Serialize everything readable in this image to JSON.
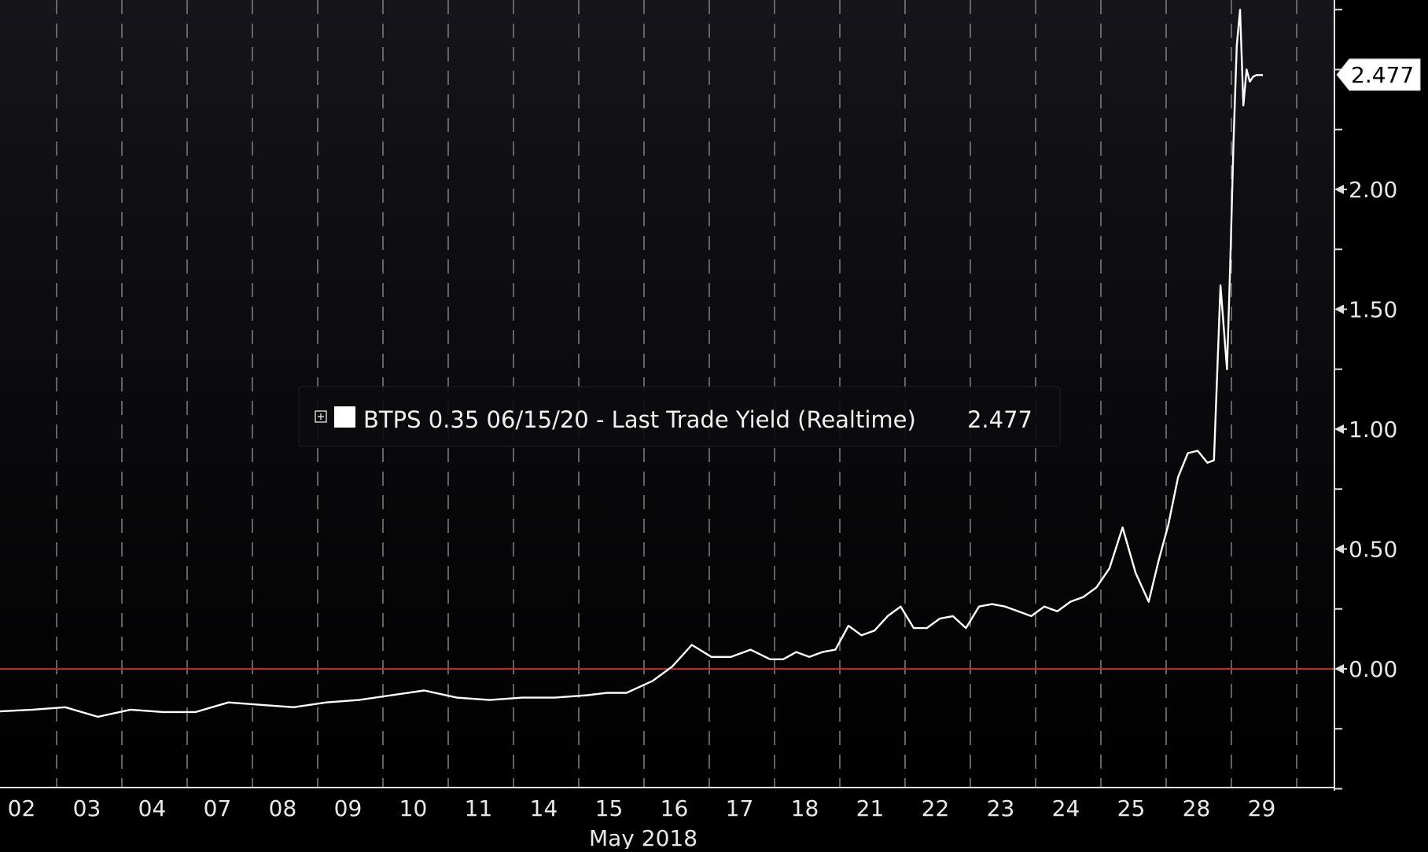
{
  "chart_data": {
    "type": "line",
    "title": "",
    "xlabel": "May 2018",
    "ylabel": "",
    "x_tick_labels": [
      "02",
      "03",
      "04",
      "07",
      "08",
      "09",
      "10",
      "11",
      "14",
      "15",
      "16",
      "17",
      "18",
      "21",
      "22",
      "23",
      "24",
      "25",
      "28",
      "29"
    ],
    "y_ticks": [
      0.0,
      0.5,
      1.0,
      1.5,
      2.0
    ],
    "y_tick_labels": [
      "0.00",
      "0.50",
      "1.00",
      "1.50",
      "2.00"
    ],
    "ylim": [
      -0.5,
      2.75
    ],
    "xlim": [
      0,
      20.5
    ],
    "reference_line": {
      "value": 0.0,
      "color": "#c0282d"
    },
    "grid": {
      "vertical_dashed": true,
      "horizontal": false
    },
    "legend": {
      "placement": "center",
      "icon": "expand-box-icon",
      "swatch_color": "#ffffff",
      "label": "BTPS 0.35 06/15/20 - Last Trade Yield (Realtime)",
      "value": "2.477"
    },
    "last_value_label": "2.477",
    "colors": {
      "background_top": "#15151a",
      "background_bottom": "#000000",
      "line": "#ffffff",
      "grid": "#7a7a7a",
      "axis": "#e0e0e0"
    },
    "series": [
      {
        "name": "BTPS 0.35 06/15/20 - Last Trade Yield (Realtime)",
        "x": [
          -0.2,
          0.5,
          1.0,
          1.5,
          2.0,
          2.5,
          3.0,
          3.5,
          4.0,
          4.5,
          5.0,
          5.5,
          6.0,
          6.5,
          7.0,
          7.5,
          8.0,
          8.5,
          9.0,
          9.3,
          9.6,
          10.0,
          10.3,
          10.6,
          10.9,
          11.2,
          11.5,
          11.8,
          12.0,
          12.2,
          12.4,
          12.6,
          12.8,
          13.0,
          13.2,
          13.4,
          13.6,
          13.8,
          14.0,
          14.2,
          14.4,
          14.6,
          14.8,
          15.0,
          15.2,
          15.4,
          15.6,
          15.8,
          16.0,
          16.2,
          16.4,
          16.6,
          16.8,
          17.0,
          17.2,
          17.4,
          17.6,
          17.75,
          17.9,
          18.05,
          18.2,
          18.35,
          18.5,
          18.6,
          18.7,
          18.8,
          18.85,
          18.9,
          18.95,
          19.0,
          19.05,
          19.1,
          19.15,
          19.2,
          19.25,
          19.3,
          19.35
        ],
        "y": [
          -0.18,
          -0.17,
          -0.16,
          -0.2,
          -0.17,
          -0.18,
          -0.18,
          -0.14,
          -0.15,
          -0.16,
          -0.14,
          -0.13,
          -0.11,
          -0.09,
          -0.12,
          -0.13,
          -0.12,
          -0.12,
          -0.11,
          -0.1,
          -0.1,
          -0.05,
          0.01,
          0.1,
          0.05,
          0.05,
          0.08,
          0.04,
          0.04,
          0.07,
          0.05,
          0.07,
          0.08,
          0.18,
          0.14,
          0.16,
          0.22,
          0.26,
          0.17,
          0.17,
          0.21,
          0.22,
          0.17,
          0.26,
          0.27,
          0.26,
          0.24,
          0.22,
          0.26,
          0.24,
          0.28,
          0.3,
          0.34,
          0.42,
          0.59,
          0.4,
          0.28,
          0.45,
          0.6,
          0.8,
          0.9,
          0.91,
          0.86,
          0.87,
          1.6,
          1.25,
          1.7,
          2.2,
          2.6,
          2.75,
          2.35,
          2.5,
          2.45,
          2.47,
          2.477,
          2.477,
          2.477
        ]
      }
    ]
  }
}
